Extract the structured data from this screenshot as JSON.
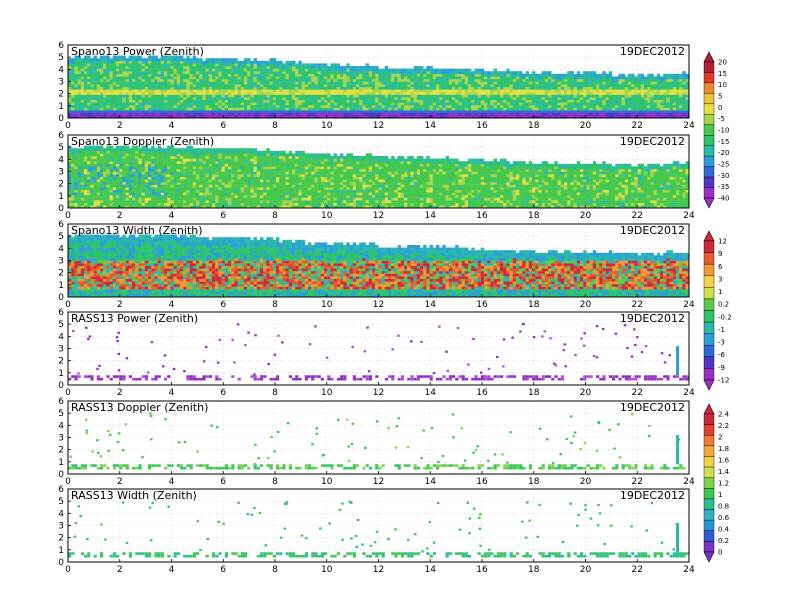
{
  "chart_data": [
    {
      "type": "heatmap",
      "title": "Spano13 Power (Zenith)",
      "date_label": "19DEC2012",
      "x_range": [
        0,
        24
      ],
      "x_ticks": [
        "0",
        "2",
        "4",
        "6",
        "8",
        "10",
        "12",
        "14",
        "16",
        "18",
        "20",
        "22",
        "24"
      ],
      "y_range": [
        0,
        6
      ],
      "y_ticks": [
        "0",
        "1",
        "2",
        "3",
        "4",
        "5",
        "6"
      ],
      "grid": true,
      "top_height_profile": [
        5.2,
        5.2,
        5.2,
        5.2,
        5.1,
        5.0,
        5.0,
        4.9,
        4.8,
        4.6,
        4.5,
        4.4,
        4.3,
        4.3,
        4.2,
        4.1,
        4.0,
        3.9,
        3.8,
        3.8,
        3.8,
        3.7,
        3.7,
        3.8
      ],
      "colorbar": [
        "20",
        "15",
        "10",
        "5",
        "0",
        "-5",
        "-10",
        "-15",
        "-20",
        "-25",
        "-30",
        "-35",
        "-40"
      ]
    },
    {
      "type": "heatmap",
      "title": "Spano13 Doppler (Zenith)",
      "date_label": "19DEC2012",
      "x_range": [
        0,
        24
      ],
      "x_ticks": [
        "0",
        "2",
        "4",
        "6",
        "8",
        "10",
        "12",
        "14",
        "16",
        "18",
        "20",
        "22",
        "24"
      ],
      "y_range": [
        0,
        6
      ],
      "y_ticks": [
        "0",
        "1",
        "2",
        "3",
        "4",
        "5",
        "6"
      ],
      "grid": true,
      "top_height_profile": [
        5.2,
        5.2,
        5.2,
        5.2,
        5.1,
        5.0,
        5.0,
        4.9,
        4.8,
        4.6,
        4.5,
        4.4,
        4.3,
        4.3,
        4.2,
        4.1,
        4.0,
        3.9,
        3.8,
        3.8,
        3.8,
        3.7,
        3.7,
        3.8
      ]
    },
    {
      "type": "heatmap",
      "title": "Spano13 Width (Zenith)",
      "date_label": "19DEC2012",
      "x_range": [
        0,
        24
      ],
      "x_ticks": [
        "0",
        "2",
        "4",
        "6",
        "8",
        "10",
        "12",
        "14",
        "16",
        "18",
        "20",
        "22",
        "24"
      ],
      "y_range": [
        0,
        6
      ],
      "y_ticks": [
        "0",
        "1",
        "2",
        "3",
        "4",
        "5",
        "6"
      ],
      "grid": true,
      "top_height_profile": [
        5.2,
        5.2,
        5.2,
        5.2,
        5.1,
        5.0,
        5.0,
        4.9,
        4.8,
        4.6,
        4.5,
        4.4,
        4.3,
        4.3,
        4.2,
        4.1,
        4.0,
        3.9,
        3.8,
        3.8,
        3.8,
        3.7,
        3.7,
        3.8
      ],
      "colorbar": [
        "12",
        "9",
        "6",
        "3",
        "1",
        "0.2",
        "-0.2",
        "-1",
        "-3",
        "-6",
        "-9",
        "-12"
      ]
    },
    {
      "type": "scatter",
      "title": "RASS13 Power (Zenith)",
      "date_label": "19DEC2012",
      "x_range": [
        0,
        24
      ],
      "x_ticks": [
        "0",
        "2",
        "4",
        "6",
        "8",
        "10",
        "12",
        "14",
        "16",
        "18",
        "20",
        "22",
        "24"
      ],
      "y_range": [
        0,
        6
      ],
      "y_ticks": [
        "0",
        "1",
        "2",
        "3",
        "4",
        "5",
        "6"
      ],
      "grid": true,
      "band_height": [
        0.55,
        0.8
      ]
    },
    {
      "type": "scatter",
      "title": "RASS13 Doppler (Zenith)",
      "date_label": "19DEC2012",
      "x_range": [
        0,
        24
      ],
      "x_ticks": [
        "0",
        "2",
        "4",
        "6",
        "8",
        "10",
        "12",
        "14",
        "16",
        "18",
        "20",
        "22",
        "24"
      ],
      "y_range": [
        0,
        6
      ],
      "y_ticks": [
        "0",
        "1",
        "2",
        "3",
        "4",
        "5",
        "6"
      ],
      "grid": true,
      "band_height": [
        0.55,
        0.8
      ],
      "colorbar": [
        "2.4",
        "2.2",
        "2",
        "1.8",
        "1.6",
        "1.4",
        "1.2",
        "1",
        "0.8",
        "0.6",
        "0.4",
        "0.2",
        "0"
      ]
    },
    {
      "type": "scatter",
      "title": "RASS13 Width (Zenith)",
      "date_label": "19DEC2012",
      "x_range": [
        0,
        24
      ],
      "x_ticks": [
        "0",
        "2",
        "4",
        "6",
        "8",
        "10",
        "12",
        "14",
        "16",
        "18",
        "20",
        "22",
        "24"
      ],
      "y_range": [
        0,
        6
      ],
      "y_ticks": [
        "0",
        "1",
        "2",
        "3",
        "4",
        "5",
        "6"
      ],
      "grid": true,
      "band_height": [
        0.55,
        0.8
      ]
    }
  ],
  "colors": {
    "power": [
      "#b21f3a",
      "#e33b2a",
      "#f08a30",
      "#f4c13c",
      "#e2e045",
      "#a8d64a",
      "#46c84d",
      "#2ec46a",
      "#2bb9a8",
      "#2a9fd8",
      "#2f6ad8",
      "#5535c8",
      "#9b30c8"
    ],
    "width": [
      "#d02a3a",
      "#e65a2f",
      "#f09a35",
      "#f4d245",
      "#cfe04a",
      "#5cc94d",
      "#2ec46a",
      "#2bb9a8",
      "#2a9fd8",
      "#2f6ad8",
      "#5535c8",
      "#9b30c8"
    ],
    "doppler": [
      "#c8283c",
      "#e2402e",
      "#ef7a30",
      "#f3aa38",
      "#f3d040",
      "#cfe04a",
      "#7ed34c",
      "#3cc94f",
      "#2bbf8a",
      "#2ab2c0",
      "#2a92d8",
      "#3158d6",
      "#7a32c8"
    ]
  }
}
